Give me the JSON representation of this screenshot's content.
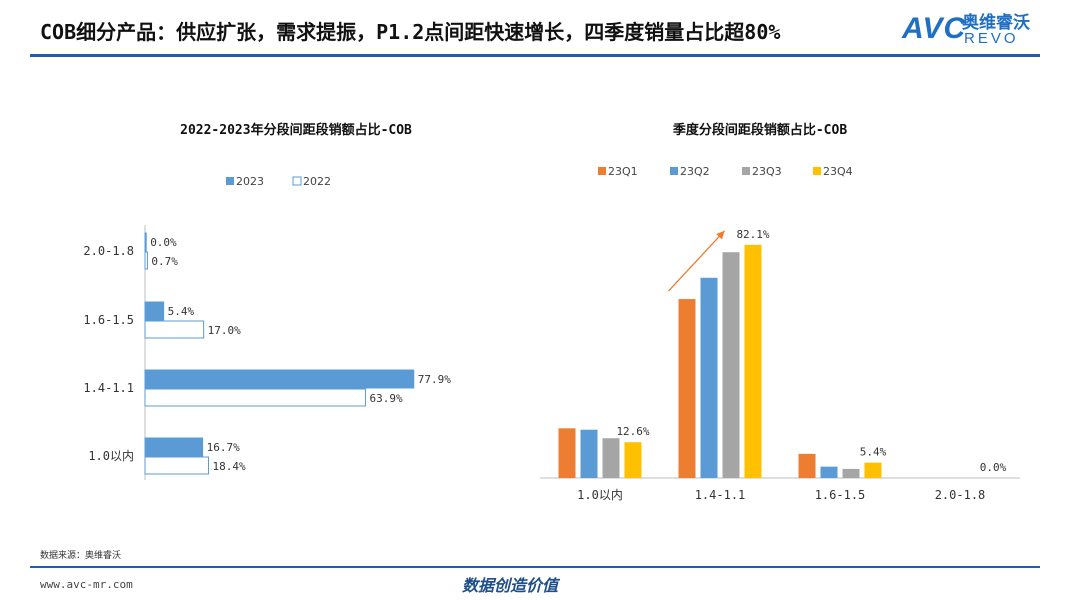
{
  "header": {
    "title": "COB细分产品：供应扩张，需求提振，P1.2点间距快速增长，四季度销量占比超80%",
    "logo_text": "AVC",
    "logo_cn": "奥维睿沃",
    "logo_en": "REVO"
  },
  "footer": {
    "source": "数据来源：奥维睿沃",
    "website": "www.avc-mr.com",
    "slogan": "数据创造价值"
  },
  "colors": {
    "accent": "#1f5fa8",
    "s2023": "#5b9bd5",
    "q1": "#ed7d31",
    "q2": "#5b9bd5",
    "q3": "#a5a5a5",
    "q4": "#ffc000",
    "arrow": "#ed7d31"
  },
  "chart_data": [
    {
      "type": "bar",
      "orientation": "horizontal",
      "title": "2022-2023年分段间距段销额占比-COB",
      "categories": [
        "2.0-1.8",
        "1.6-1.5",
        "1.4-1.1",
        "1.0以内"
      ],
      "series": [
        {
          "name": "2023",
          "values": [
            0.0,
            5.4,
            77.9,
            16.7
          ],
          "labels": [
            "0.0%",
            "5.4%",
            "77.9%",
            "16.7%"
          ]
        },
        {
          "name": "2022",
          "values": [
            0.7,
            17.0,
            63.9,
            18.4
          ],
          "labels": [
            "0.7%",
            "17.0%",
            "63.9%",
            "18.4%"
          ]
        }
      ],
      "legend_position": "top",
      "xlim": [
        0,
        100
      ],
      "grid": false
    },
    {
      "type": "bar",
      "title": "季度分段间距段销额占比-COB",
      "categories": [
        "1.0以内",
        "1.4-1.1",
        "1.6-1.5",
        "2.0-1.8"
      ],
      "series": [
        {
          "name": "23Q1",
          "values": [
            17.5,
            63.0,
            8.5,
            0.0
          ]
        },
        {
          "name": "23Q2",
          "values": [
            17.0,
            70.5,
            4.0,
            0.0
          ]
        },
        {
          "name": "23Q3",
          "values": [
            14.0,
            79.5,
            3.2,
            0.0
          ]
        },
        {
          "name": "23Q4",
          "values": [
            12.6,
            82.1,
            5.4,
            0.0
          ]
        }
      ],
      "data_labels": [
        {
          "category": "1.0以内",
          "series": "23Q4",
          "text": "12.6%"
        },
        {
          "category": "1.4-1.1",
          "series": "23Q4",
          "text": "82.1%"
        },
        {
          "category": "1.6-1.5",
          "series": "23Q4",
          "text": "5.4%"
        },
        {
          "category": "2.0-1.8",
          "series": "23Q4",
          "text": "0.0%"
        }
      ],
      "annotation": "upward arrow over 1.4-1.1 group",
      "legend_position": "top",
      "ylim": [
        0,
        100
      ],
      "grid": false
    }
  ]
}
